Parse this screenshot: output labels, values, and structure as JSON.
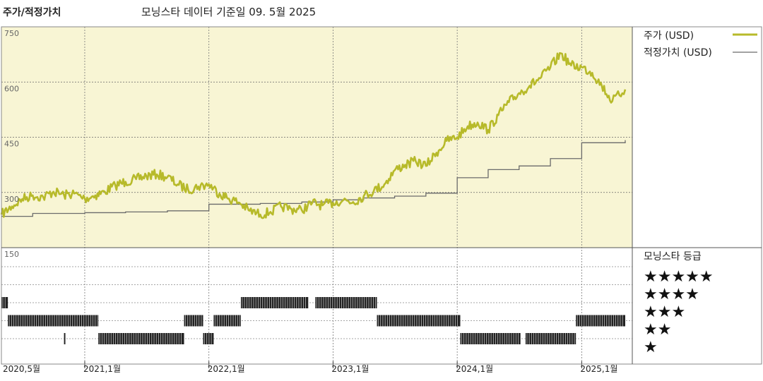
{
  "header": {
    "title": "주가/적정가치",
    "subtitle": "모닝스타 데이터 기준일 09. 5월 2025"
  },
  "colors": {
    "price_line": "#b7ba2a",
    "fair_value_line": "#6b6b6b",
    "upper_panel_bg": "#f8f5d4",
    "rating_bar": "#222222"
  },
  "chart_data": {
    "type": "line",
    "x_range": [
      "2020-05-01",
      "2025-05-09"
    ],
    "ylim": [
      150,
      750
    ],
    "y_ticks": [
      {
        "value": 150,
        "label": "150"
      },
      {
        "value": 300,
        "label": "300"
      },
      {
        "value": 450,
        "label": "450"
      },
      {
        "value": 600,
        "label": "600"
      },
      {
        "value": 750,
        "label": "750"
      }
    ],
    "x_ticks": [
      {
        "date": "2020-05-01",
        "label": "2020,5월"
      },
      {
        "date": "2021-01-01",
        "label": "2021,1월"
      },
      {
        "date": "2022-01-01",
        "label": "2022,1월"
      },
      {
        "date": "2023-01-01",
        "label": "2023,1월"
      },
      {
        "date": "2024-01-01",
        "label": "2024,1월"
      },
      {
        "date": "2025-01-01",
        "label": "2025,1월"
      }
    ],
    "series": [
      {
        "name": "주가 (USD)",
        "points": [
          [
            "2020-05-01",
            240
          ],
          [
            "2020-06-01",
            262
          ],
          [
            "2020-07-01",
            282
          ],
          [
            "2020-08-01",
            292
          ],
          [
            "2020-09-01",
            287
          ],
          [
            "2020-10-01",
            302
          ],
          [
            "2020-11-01",
            293
          ],
          [
            "2020-12-01",
            297
          ],
          [
            "2021-01-01",
            283
          ],
          [
            "2021-02-01",
            292
          ],
          [
            "2021-03-01",
            302
          ],
          [
            "2021-04-01",
            319
          ],
          [
            "2021-05-01",
            329
          ],
          [
            "2021-06-01",
            336
          ],
          [
            "2021-07-01",
            345
          ],
          [
            "2021-08-01",
            349
          ],
          [
            "2021-09-01",
            342
          ],
          [
            "2021-10-01",
            322
          ],
          [
            "2021-11-01",
            308
          ],
          [
            "2021-12-01",
            316
          ],
          [
            "2022-01-01",
            322
          ],
          [
            "2022-02-01",
            297
          ],
          [
            "2022-03-01",
            283
          ],
          [
            "2022-04-01",
            272
          ],
          [
            "2022-05-01",
            250
          ],
          [
            "2022-06-01",
            240
          ],
          [
            "2022-07-01",
            247
          ],
          [
            "2022-08-01",
            262
          ],
          [
            "2022-09-01",
            255
          ],
          [
            "2022-10-01",
            252
          ],
          [
            "2022-11-01",
            272
          ],
          [
            "2022-12-01",
            265
          ],
          [
            "2023-01-01",
            272
          ],
          [
            "2023-02-01",
            280
          ],
          [
            "2023-03-01",
            274
          ],
          [
            "2023-04-01",
            290
          ],
          [
            "2023-05-01",
            305
          ],
          [
            "2023-06-01",
            322
          ],
          [
            "2023-07-01",
            360
          ],
          [
            "2023-08-01",
            375
          ],
          [
            "2023-09-01",
            385
          ],
          [
            "2023-10-01",
            372
          ],
          [
            "2023-11-01",
            408
          ],
          [
            "2023-12-01",
            440
          ],
          [
            "2024-01-01",
            450
          ],
          [
            "2024-02-01",
            480
          ],
          [
            "2024-03-01",
            490
          ],
          [
            "2024-04-01",
            470
          ],
          [
            "2024-05-01",
            510
          ],
          [
            "2024-06-01",
            545
          ],
          [
            "2024-07-01",
            570
          ],
          [
            "2024-08-01",
            590
          ],
          [
            "2024-09-01",
            610
          ],
          [
            "2024-10-01",
            640
          ],
          [
            "2024-11-01",
            678
          ],
          [
            "2024-12-01",
            645
          ],
          [
            "2025-01-01",
            640
          ],
          [
            "2025-02-01",
            625
          ],
          [
            "2025-03-01",
            590
          ],
          [
            "2025-04-01",
            548
          ],
          [
            "2025-05-09",
            580
          ]
        ]
      },
      {
        "name": "적정가치 (USD)",
        "points": [
          [
            "2020-05-01",
            235
          ],
          [
            "2020-08-01",
            243
          ],
          [
            "2021-01-01",
            245
          ],
          [
            "2021-05-01",
            247
          ],
          [
            "2021-09-01",
            250
          ],
          [
            "2022-01-01",
            268
          ],
          [
            "2022-06-01",
            270
          ],
          [
            "2022-10-01",
            274
          ],
          [
            "2023-01-01",
            280
          ],
          [
            "2023-04-01",
            285
          ],
          [
            "2023-07-01",
            290
          ],
          [
            "2023-10-01",
            298
          ],
          [
            "2024-01-01",
            340
          ],
          [
            "2024-04-01",
            362
          ],
          [
            "2024-07-01",
            372
          ],
          [
            "2024-10-01",
            392
          ],
          [
            "2025-01-01",
            435
          ],
          [
            "2025-05-09",
            442
          ]
        ]
      }
    ],
    "ratings": {
      "title": "모닝스타 등급",
      "levels": [
        {
          "stars": 5,
          "label": "★★★★★"
        },
        {
          "stars": 4,
          "label": "★★★★"
        },
        {
          "stars": 3,
          "label": "★★★"
        },
        {
          "stars": 2,
          "label": "★★"
        },
        {
          "stars": 1,
          "label": "★"
        }
      ],
      "periods": [
        {
          "stars": 3,
          "start": "2020-05-01",
          "end": "2020-05-20"
        },
        {
          "stars": 2,
          "start": "2020-05-20",
          "end": "2021-02-10"
        },
        {
          "stars": 1,
          "start": "2020-11-01",
          "end": "2020-11-05"
        },
        {
          "stars": 1,
          "start": "2021-02-10",
          "end": "2021-10-20"
        },
        {
          "stars": 2,
          "start": "2021-10-20",
          "end": "2021-12-15"
        },
        {
          "stars": 1,
          "start": "2021-12-15",
          "end": "2022-01-15"
        },
        {
          "stars": 2,
          "start": "2022-01-15",
          "end": "2022-04-05"
        },
        {
          "stars": 3,
          "start": "2022-04-05",
          "end": "2022-10-20"
        },
        {
          "stars": 3,
          "start": "2022-11-10",
          "end": "2023-05-10"
        },
        {
          "stars": 2,
          "start": "2023-05-10",
          "end": "2024-01-10"
        },
        {
          "stars": 1,
          "start": "2024-01-10",
          "end": "2024-07-05"
        },
        {
          "stars": 1,
          "start": "2024-07-20",
          "end": "2024-12-15"
        },
        {
          "stars": 2,
          "start": "2024-12-15",
          "end": "2025-05-09"
        }
      ]
    }
  }
}
